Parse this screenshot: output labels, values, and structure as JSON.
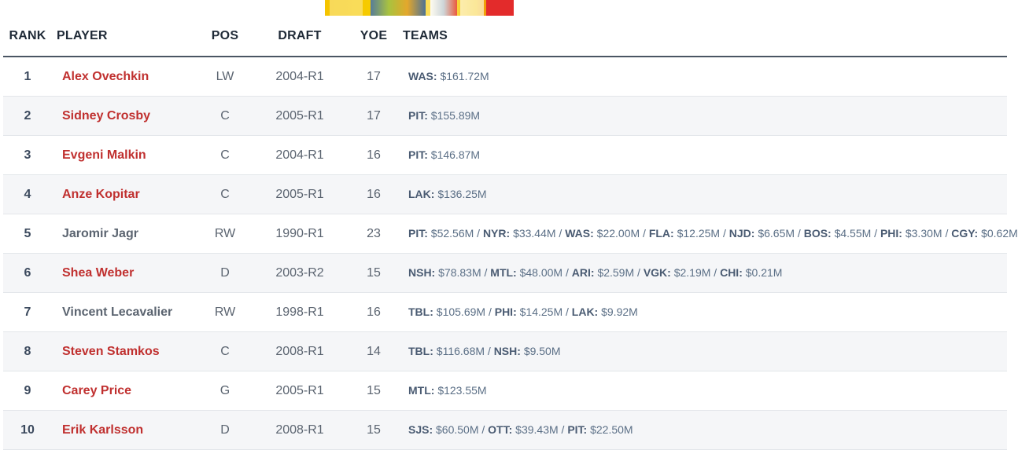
{
  "ad": {
    "colors": [
      "#f5c400",
      "#e32b2b"
    ]
  },
  "header": {
    "rank": "RANK",
    "player": "PLAYER",
    "pos": "POS",
    "draft": "DRAFT",
    "yoe": "YOE",
    "teams": "TEAMS"
  },
  "colors": {
    "link_player": "#c0302f",
    "muted_player": "#5b6470",
    "text": "#5b6470",
    "header_rule": "#4a5563",
    "row_alt": "#f5f6f8"
  },
  "rows": [
    {
      "rank": "1",
      "player": "Alex Ovechkin",
      "linked": true,
      "pos": "LW",
      "draft": "2004-R1",
      "yoe": "17",
      "teams": [
        {
          "code": "WAS:",
          "amount": "$161.72M"
        }
      ]
    },
    {
      "rank": "2",
      "player": "Sidney Crosby",
      "linked": true,
      "pos": "C",
      "draft": "2005-R1",
      "yoe": "17",
      "teams": [
        {
          "code": "PIT:",
          "amount": "$155.89M"
        }
      ]
    },
    {
      "rank": "3",
      "player": "Evgeni Malkin",
      "linked": true,
      "pos": "C",
      "draft": "2004-R1",
      "yoe": "16",
      "teams": [
        {
          "code": "PIT:",
          "amount": "$146.87M"
        }
      ]
    },
    {
      "rank": "4",
      "player": "Anze Kopitar",
      "linked": true,
      "pos": "C",
      "draft": "2005-R1",
      "yoe": "16",
      "teams": [
        {
          "code": "LAK:",
          "amount": "$136.25M"
        }
      ]
    },
    {
      "rank": "5",
      "player": "Jaromir Jagr",
      "linked": false,
      "pos": "RW",
      "draft": "1990-R1",
      "yoe": "23",
      "teams": [
        {
          "code": "PIT:",
          "amount": "$52.56M"
        },
        {
          "code": "NYR:",
          "amount": "$33.44M"
        },
        {
          "code": "WAS:",
          "amount": "$22.00M"
        },
        {
          "code": "FLA:",
          "amount": "$12.25M"
        },
        {
          "code": "NJD:",
          "amount": "$6.65M"
        },
        {
          "code": "BOS:",
          "amount": "$4.55M"
        },
        {
          "code": "PHI:",
          "amount": "$3.30M"
        },
        {
          "code": "CGY:",
          "amount": "$0.62M"
        }
      ]
    },
    {
      "rank": "6",
      "player": "Shea Weber",
      "linked": true,
      "pos": "D",
      "draft": "2003-R2",
      "yoe": "15",
      "teams": [
        {
          "code": "NSH:",
          "amount": "$78.83M"
        },
        {
          "code": "MTL:",
          "amount": "$48.00M"
        },
        {
          "code": "ARI:",
          "amount": "$2.59M"
        },
        {
          "code": "VGK:",
          "amount": "$2.19M"
        },
        {
          "code": "CHI:",
          "amount": "$0.21M"
        }
      ]
    },
    {
      "rank": "7",
      "player": "Vincent Lecavalier",
      "linked": false,
      "pos": "RW",
      "draft": "1998-R1",
      "yoe": "16",
      "teams": [
        {
          "code": "TBL:",
          "amount": "$105.69M"
        },
        {
          "code": "PHI:",
          "amount": "$14.25M"
        },
        {
          "code": "LAK:",
          "amount": "$9.92M"
        }
      ]
    },
    {
      "rank": "8",
      "player": "Steven Stamkos",
      "linked": true,
      "pos": "C",
      "draft": "2008-R1",
      "yoe": "14",
      "teams": [
        {
          "code": "TBL:",
          "amount": "$116.68M"
        },
        {
          "code": "NSH:",
          "amount": "$9.50M"
        }
      ]
    },
    {
      "rank": "9",
      "player": "Carey Price",
      "linked": true,
      "pos": "G",
      "draft": "2005-R1",
      "yoe": "15",
      "teams": [
        {
          "code": "MTL:",
          "amount": "$123.55M"
        }
      ]
    },
    {
      "rank": "10",
      "player": "Erik Karlsson",
      "linked": true,
      "pos": "D",
      "draft": "2008-R1",
      "yoe": "15",
      "teams": [
        {
          "code": "SJS:",
          "amount": "$60.50M"
        },
        {
          "code": "OTT:",
          "amount": "$39.43M"
        },
        {
          "code": "PIT:",
          "amount": "$22.50M"
        }
      ]
    }
  ]
}
